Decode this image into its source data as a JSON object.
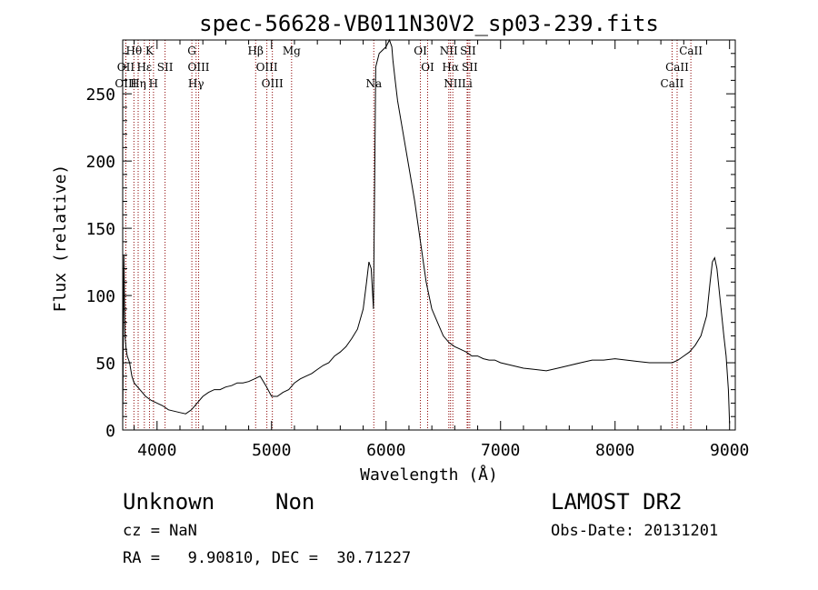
{
  "chart_data": {
    "type": "line",
    "title": "spec-56628-VB011N30V2_sp03-239.fits",
    "xlabel": "Wavelength (Å)",
    "ylabel": "Flux (relative)",
    "xlim": [
      3700,
      9050
    ],
    "ylim": [
      0,
      290
    ],
    "xticks": [
      4000,
      5000,
      6000,
      7000,
      8000,
      9000
    ],
    "yticks": [
      0,
      50,
      100,
      150,
      200,
      250
    ],
    "grid": false,
    "line_color": "#000000",
    "marker_color": "#8b0000",
    "series": [
      {
        "x": [
          3700,
          3710,
          3720,
          3730,
          3740,
          3760,
          3780,
          3800,
          3850,
          3900,
          3950,
          4000,
          4050,
          4100,
          4150,
          4200,
          4250,
          4300,
          4350,
          4400,
          4450,
          4500,
          4550,
          4600,
          4650,
          4700,
          4750,
          4800,
          4850,
          4900,
          4950,
          5000,
          5050,
          5100,
          5150,
          5200,
          5250,
          5300,
          5350,
          5400,
          5450,
          5500,
          5550,
          5600,
          5650,
          5700,
          5750,
          5800,
          5830,
          5850,
          5870,
          5890,
          5910,
          5940,
          6000,
          6030,
          6050,
          6060,
          6080,
          6100,
          6150,
          6200,
          6250,
          6300,
          6350,
          6400,
          6450,
          6500,
          6550,
          6600,
          6650,
          6700,
          6750,
          6800,
          6850,
          6900,
          6950,
          7000,
          7100,
          7200,
          7300,
          7400,
          7500,
          7600,
          7700,
          7800,
          7900,
          8000,
          8100,
          8200,
          8300,
          8400,
          8500,
          8550,
          8600,
          8650,
          8700,
          8750,
          8800,
          8830,
          8850,
          8870,
          8890,
          8920,
          8950,
          8970,
          8990,
          9000
        ],
        "y": [
          5,
          130,
          70,
          60,
          55,
          50,
          40,
          35,
          30,
          25,
          22,
          20,
          18,
          15,
          14,
          13,
          12,
          15,
          20,
          25,
          28,
          30,
          30,
          32,
          33,
          35,
          35,
          36,
          38,
          40,
          33,
          25,
          25,
          28,
          30,
          35,
          38,
          40,
          42,
          45,
          48,
          50,
          55,
          58,
          62,
          68,
          75,
          90,
          110,
          125,
          120,
          90,
          270,
          280,
          285,
          290,
          285,
          275,
          260,
          245,
          220,
          195,
          170,
          140,
          110,
          90,
          80,
          70,
          65,
          62,
          60,
          58,
          55,
          55,
          53,
          52,
          52,
          50,
          48,
          46,
          45,
          44,
          46,
          48,
          50,
          52,
          52,
          53,
          52,
          51,
          50,
          50,
          50,
          52,
          55,
          58,
          63,
          70,
          85,
          110,
          125,
          128,
          120,
          95,
          70,
          55,
          30,
          5
        ]
      }
    ],
    "line_markers": [
      {
        "name": "Hθ",
        "x": 3798,
        "row": 0
      },
      {
        "name": "OII",
        "x": 3727,
        "row": 1
      },
      {
        "name": "OIII",
        "x": 3727,
        "row": 2
      },
      {
        "name": "Hε",
        "x": 3889,
        "row": 1
      },
      {
        "name": "Hη",
        "x": 3835,
        "row": 2
      },
      {
        "name": "K",
        "x": 3934,
        "row": 0
      },
      {
        "name": "SII",
        "x": 4070,
        "row": 1
      },
      {
        "name": "H",
        "x": 3969,
        "row": 2
      },
      {
        "name": "G",
        "x": 4304,
        "row": 0
      },
      {
        "name": "OIII",
        "x": 4363,
        "row": 1
      },
      {
        "name": "Hγ",
        "x": 4341,
        "row": 2
      },
      {
        "name": "Hβ",
        "x": 4861,
        "row": 0
      },
      {
        "name": "OIII",
        "x": 4959,
        "row": 1
      },
      {
        "name": "OIII",
        "x": 5007,
        "row": 2
      },
      {
        "name": "Mg",
        "x": 5175,
        "row": 0
      },
      {
        "name": "Na",
        "x": 5893,
        "row": 2
      },
      {
        "name": "OI",
        "x": 6300,
        "row": 0
      },
      {
        "name": "OI",
        "x": 6363,
        "row": 1
      },
      {
        "name": "NII",
        "x": 6548,
        "row": 0
      },
      {
        "name": "Hα",
        "x": 6563,
        "row": 1
      },
      {
        "name": "NII",
        "x": 6583,
        "row": 2
      },
      {
        "name": "SII",
        "x": 6716,
        "row": 0
      },
      {
        "name": "SII",
        "x": 6731,
        "row": 1
      },
      {
        "name": "Li",
        "x": 6708,
        "row": 2
      },
      {
        "name": "CaII",
        "x": 8662,
        "row": 0
      },
      {
        "name": "CaII",
        "x": 8542,
        "row": 1
      },
      {
        "name": "CaII",
        "x": 8498,
        "row": 2
      }
    ]
  },
  "info": {
    "object_class": "Unknown",
    "subclass": "Non",
    "release": "LAMOST DR2",
    "redshift": "cz = NaN",
    "obs_date": "Obs-Date: 20131201",
    "coords": "RA =   9.90810, DEC =  30.71227"
  }
}
